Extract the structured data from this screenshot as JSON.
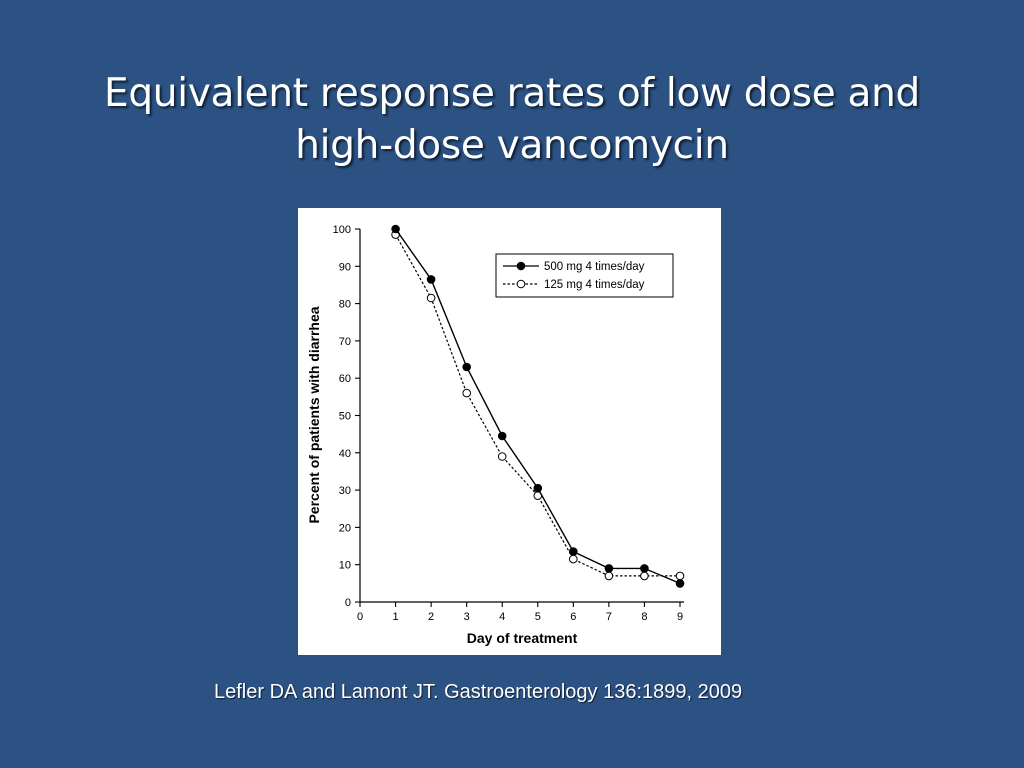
{
  "slide": {
    "title_line1": "Equivalent response rates of low dose and",
    "title_line2": "high-dose vancomycin",
    "citation": "Lefler DA and Lamont JT.  Gastroenterology 136:1899, 2009",
    "background_color": "#2c5283"
  },
  "chart_data": {
    "type": "line",
    "title": "",
    "xlabel": "Day of treatment",
    "ylabel": "Percent of patients with diarrhea",
    "xlim": [
      0,
      9
    ],
    "ylim": [
      0,
      100
    ],
    "x_ticks": [
      0,
      1,
      2,
      3,
      4,
      5,
      6,
      7,
      8,
      9
    ],
    "y_ticks": [
      0,
      10,
      20,
      30,
      40,
      50,
      60,
      70,
      80,
      90,
      100
    ],
    "grid": false,
    "legend_position": "top-right",
    "series": [
      {
        "name": "500 mg 4 times/day",
        "style": "solid",
        "marker": "filled-circle",
        "x": [
          1,
          2,
          3,
          4,
          5,
          6,
          7,
          8,
          9
        ],
        "y": [
          100,
          86.5,
          63,
          44.5,
          30.5,
          13.5,
          9,
          9,
          5
        ]
      },
      {
        "name": "125 mg 4 times/day",
        "style": "dashed",
        "marker": "open-circle",
        "x": [
          1,
          2,
          3,
          4,
          5,
          6,
          7,
          8,
          9
        ],
        "y": [
          98.5,
          81.5,
          56,
          39,
          28.5,
          11.5,
          7,
          7,
          7
        ]
      }
    ]
  }
}
